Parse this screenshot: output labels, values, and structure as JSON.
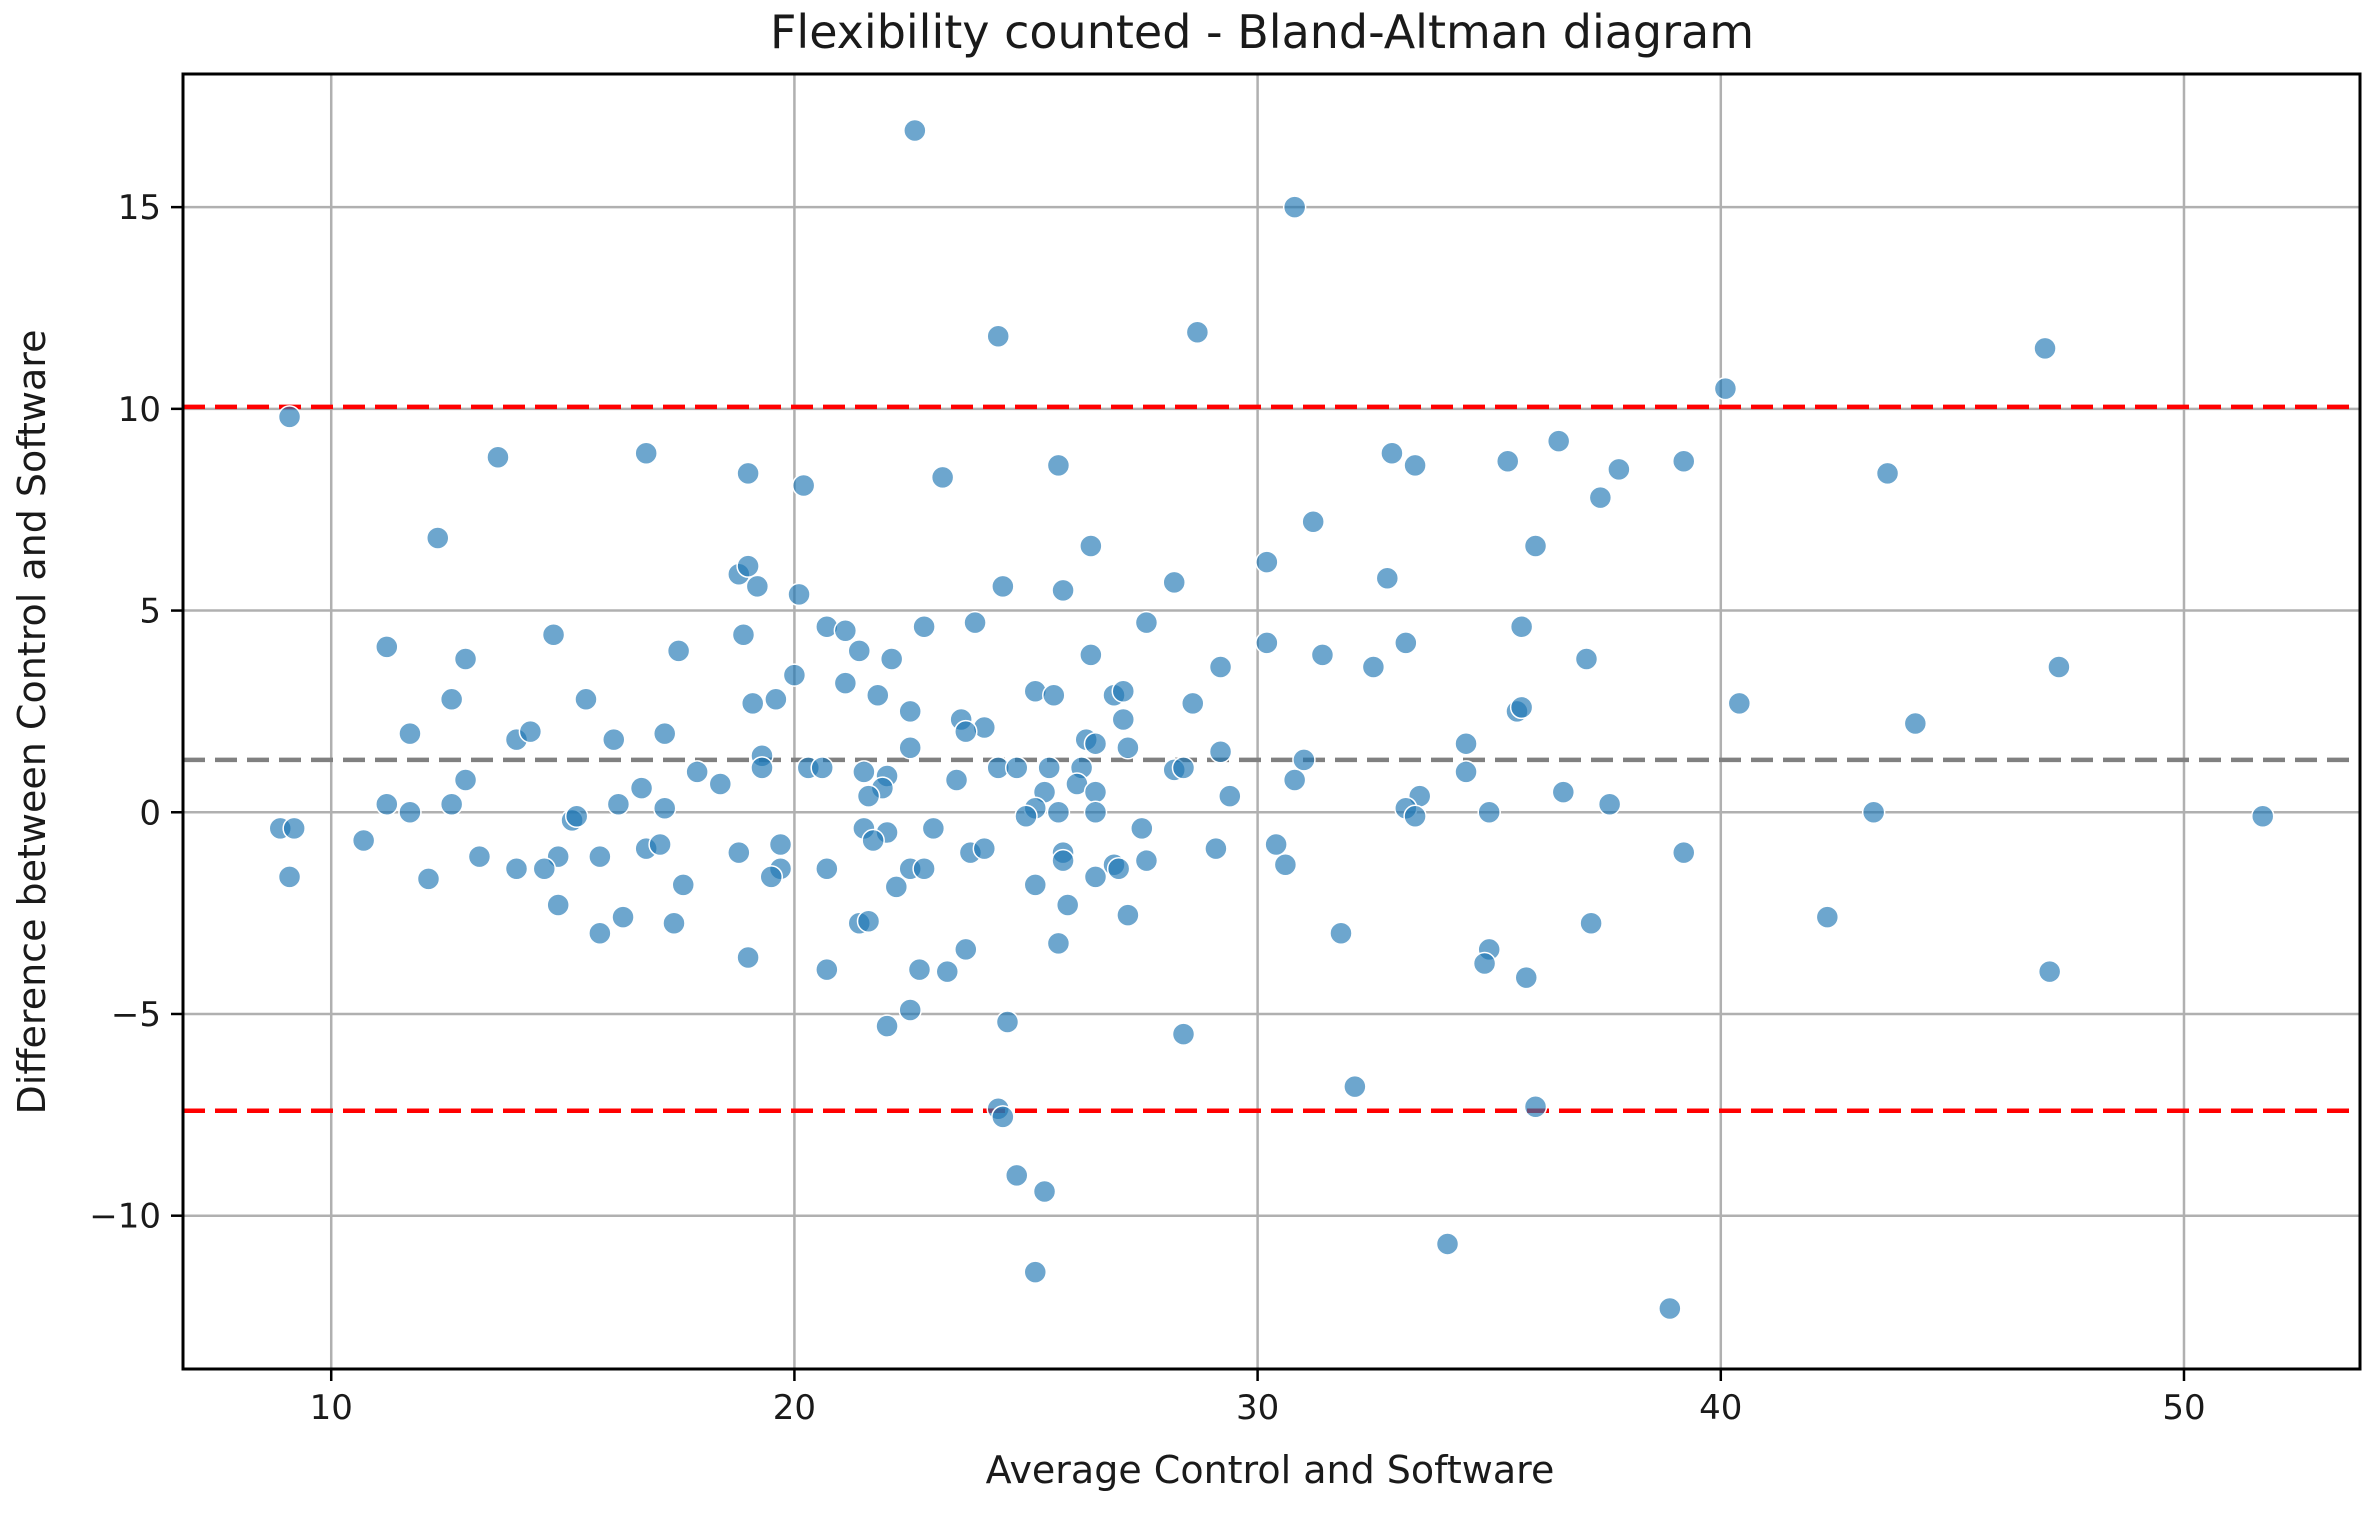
{
  "chart_data": {
    "type": "scatter",
    "title": "Flexibility counted - Bland-Altman diagram",
    "xlabel": "Average Control and Software",
    "ylabel": "Difference between Control and Software",
    "xlim": [
      6.8,
      53.8
    ],
    "ylim": [
      -13.8,
      18.3
    ],
    "xticks": [
      10,
      20,
      30,
      40,
      50
    ],
    "yticks": [
      -10,
      -5,
      0,
      5,
      10,
      15
    ],
    "ytick_labels": [
      "−10",
      "−5",
      "0",
      "5",
      "10",
      "15"
    ],
    "grid": true,
    "point_color": "#1f77b4",
    "reference_lines": [
      {
        "name": "upper-limit-of-agreement",
        "y": 10.05,
        "color": "#ff0000",
        "style": "dashed"
      },
      {
        "name": "mean-difference",
        "y": 1.3,
        "color": "#808080",
        "style": "dashed"
      },
      {
        "name": "lower-limit-of-agreement",
        "y": -7.4,
        "color": "#ff0000",
        "style": "dashed"
      }
    ],
    "points": [
      [
        22.6,
        16.9
      ],
      [
        30.8,
        15.0
      ],
      [
        24.4,
        11.8
      ],
      [
        28.7,
        11.9
      ],
      [
        47.0,
        11.5
      ],
      [
        40.1,
        10.5
      ],
      [
        9.1,
        9.8
      ],
      [
        13.6,
        8.8
      ],
      [
        16.8,
        8.9
      ],
      [
        19.0,
        8.4
      ],
      [
        20.2,
        8.1
      ],
      [
        23.2,
        8.3
      ],
      [
        25.7,
        8.6
      ],
      [
        32.9,
        8.9
      ],
      [
        33.4,
        8.6
      ],
      [
        35.4,
        8.7
      ],
      [
        36.5,
        9.2
      ],
      [
        37.8,
        8.5
      ],
      [
        39.2,
        8.7
      ],
      [
        43.6,
        8.4
      ],
      [
        37.4,
        7.8
      ],
      [
        31.2,
        7.2
      ],
      [
        12.3,
        6.8
      ],
      [
        26.4,
        6.6
      ],
      [
        36.0,
        6.6
      ],
      [
        18.8,
        5.9
      ],
      [
        19.0,
        6.1
      ],
      [
        19.2,
        5.6
      ],
      [
        20.1,
        5.4
      ],
      [
        24.5,
        5.6
      ],
      [
        25.8,
        5.5
      ],
      [
        28.2,
        5.7
      ],
      [
        30.2,
        6.2
      ],
      [
        32.8,
        5.8
      ],
      [
        14.8,
        4.4
      ],
      [
        18.9,
        4.4
      ],
      [
        20.7,
        4.6
      ],
      [
        21.1,
        4.5
      ],
      [
        22.8,
        4.6
      ],
      [
        23.9,
        4.7
      ],
      [
        27.6,
        4.7
      ],
      [
        35.7,
        4.6
      ],
      [
        11.2,
        4.1
      ],
      [
        17.5,
        4.0
      ],
      [
        21.4,
        4.0
      ],
      [
        12.9,
        3.8
      ],
      [
        22.1,
        3.8
      ],
      [
        26.4,
        3.9
      ],
      [
        30.2,
        4.2
      ],
      [
        31.4,
        3.9
      ],
      [
        32.5,
        3.6
      ],
      [
        33.2,
        4.2
      ],
      [
        37.1,
        3.8
      ],
      [
        29.2,
        3.6
      ],
      [
        47.3,
        3.6
      ],
      [
        20.0,
        3.4
      ],
      [
        21.1,
        3.2
      ],
      [
        12.6,
        2.8
      ],
      [
        15.5,
        2.8
      ],
      [
        19.1,
        2.7
      ],
      [
        19.6,
        2.8
      ],
      [
        21.8,
        2.9
      ],
      [
        22.5,
        2.5
      ],
      [
        25.2,
        3.0
      ],
      [
        25.6,
        2.9
      ],
      [
        26.9,
        2.9
      ],
      [
        27.1,
        3.0
      ],
      [
        28.6,
        2.7
      ],
      [
        35.6,
        2.5
      ],
      [
        35.7,
        2.6
      ],
      [
        40.4,
        2.7
      ],
      [
        23.6,
        2.3
      ],
      [
        24.1,
        2.1
      ],
      [
        27.1,
        2.3
      ],
      [
        44.2,
        2.2
      ],
      [
        11.7,
        1.95
      ],
      [
        14.0,
        1.8
      ],
      [
        14.3,
        2.0
      ],
      [
        16.1,
        1.8
      ],
      [
        17.2,
        1.95
      ],
      [
        23.7,
        2.0
      ],
      [
        22.5,
        1.6
      ],
      [
        26.3,
        1.8
      ],
      [
        26.5,
        1.7
      ],
      [
        27.2,
        1.6
      ],
      [
        29.2,
        1.5
      ],
      [
        34.5,
        1.7
      ],
      [
        19.3,
        1.4
      ],
      [
        31.0,
        1.3
      ],
      [
        17.9,
        1.0
      ],
      [
        19.3,
        1.1
      ],
      [
        20.3,
        1.1
      ],
      [
        20.6,
        1.1
      ],
      [
        21.5,
        1.0
      ],
      [
        22.0,
        0.9
      ],
      [
        24.4,
        1.1
      ],
      [
        24.8,
        1.1
      ],
      [
        25.5,
        1.1
      ],
      [
        26.2,
        1.1
      ],
      [
        28.2,
        1.05
      ],
      [
        28.4,
        1.1
      ],
      [
        34.5,
        1.0
      ],
      [
        12.9,
        0.8
      ],
      [
        18.4,
        0.7
      ],
      [
        23.5,
        0.8
      ],
      [
        26.1,
        0.7
      ],
      [
        30.8,
        0.8
      ],
      [
        16.7,
        0.6
      ],
      [
        21.9,
        0.6
      ],
      [
        21.6,
        0.4
      ],
      [
        25.4,
        0.5
      ],
      [
        26.5,
        0.5
      ],
      [
        29.4,
        0.4
      ],
      [
        33.5,
        0.4
      ],
      [
        36.6,
        0.5
      ],
      [
        11.2,
        0.2
      ],
      [
        12.6,
        0.2
      ],
      [
        16.2,
        0.2
      ],
      [
        17.2,
        0.1
      ],
      [
        25.2,
        0.1
      ],
      [
        33.2,
        0.1
      ],
      [
        37.6,
        0.2
      ],
      [
        11.7,
        0.0
      ],
      [
        25.0,
        -0.1
      ],
      [
        25.7,
        0.0
      ],
      [
        26.5,
        0.0
      ],
      [
        33.4,
        -0.1
      ],
      [
        35.0,
        0.0
      ],
      [
        43.3,
        0.0
      ],
      [
        51.7,
        -0.1
      ],
      [
        8.9,
        -0.4
      ],
      [
        9.2,
        -0.4
      ],
      [
        15.2,
        -0.2
      ],
      [
        15.3,
        -0.1
      ],
      [
        21.5,
        -0.4
      ],
      [
        22.0,
        -0.5
      ],
      [
        23.0,
        -0.4
      ],
      [
        27.5,
        -0.4
      ],
      [
        10.7,
        -0.7
      ],
      [
        16.8,
        -0.9
      ],
      [
        17.1,
        -0.8
      ],
      [
        18.8,
        -1.0
      ],
      [
        19.7,
        -0.8
      ],
      [
        21.7,
        -0.7
      ],
      [
        23.8,
        -1.0
      ],
      [
        24.1,
        -0.9
      ],
      [
        25.8,
        -1.0
      ],
      [
        29.1,
        -0.9
      ],
      [
        30.4,
        -0.8
      ],
      [
        39.2,
        -1.0
      ],
      [
        13.2,
        -1.1
      ],
      [
        14.9,
        -1.1
      ],
      [
        15.8,
        -1.1
      ],
      [
        25.8,
        -1.2
      ],
      [
        27.6,
        -1.2
      ],
      [
        14.0,
        -1.4
      ],
      [
        14.6,
        -1.4
      ],
      [
        19.7,
        -1.4
      ],
      [
        20.7,
        -1.4
      ],
      [
        22.5,
        -1.4
      ],
      [
        22.8,
        -1.4
      ],
      [
        26.9,
        -1.3
      ],
      [
        27.0,
        -1.4
      ],
      [
        30.6,
        -1.3
      ],
      [
        9.1,
        -1.6
      ],
      [
        12.1,
        -1.65
      ],
      [
        17.6,
        -1.8
      ],
      [
        19.5,
        -1.6
      ],
      [
        22.2,
        -1.85
      ],
      [
        25.2,
        -1.8
      ],
      [
        26.5,
        -1.6
      ],
      [
        14.9,
        -2.3
      ],
      [
        25.9,
        -2.3
      ],
      [
        16.3,
        -2.6
      ],
      [
        17.4,
        -2.75
      ],
      [
        21.4,
        -2.75
      ],
      [
        21.6,
        -2.7
      ],
      [
        27.2,
        -2.55
      ],
      [
        37.2,
        -2.75
      ],
      [
        42.3,
        -2.6
      ],
      [
        15.8,
        -3.0
      ],
      [
        31.8,
        -3.0
      ],
      [
        25.7,
        -3.25
      ],
      [
        35.0,
        -3.4
      ],
      [
        19.0,
        -3.6
      ],
      [
        23.7,
        -3.4
      ],
      [
        20.7,
        -3.9
      ],
      [
        22.7,
        -3.9
      ],
      [
        23.3,
        -3.95
      ],
      [
        34.9,
        -3.75
      ],
      [
        35.8,
        -4.1
      ],
      [
        47.1,
        -3.95
      ],
      [
        22.5,
        -4.9
      ],
      [
        22.0,
        -5.3
      ],
      [
        24.6,
        -5.2
      ],
      [
        28.4,
        -5.5
      ],
      [
        32.1,
        -6.8
      ],
      [
        36.0,
        -7.3
      ],
      [
        24.4,
        -7.35
      ],
      [
        24.5,
        -7.55
      ],
      [
        24.8,
        -9.0
      ],
      [
        25.4,
        -9.4
      ],
      [
        34.1,
        -10.7
      ],
      [
        25.2,
        -11.4
      ],
      [
        38.9,
        -12.3
      ]
    ]
  }
}
